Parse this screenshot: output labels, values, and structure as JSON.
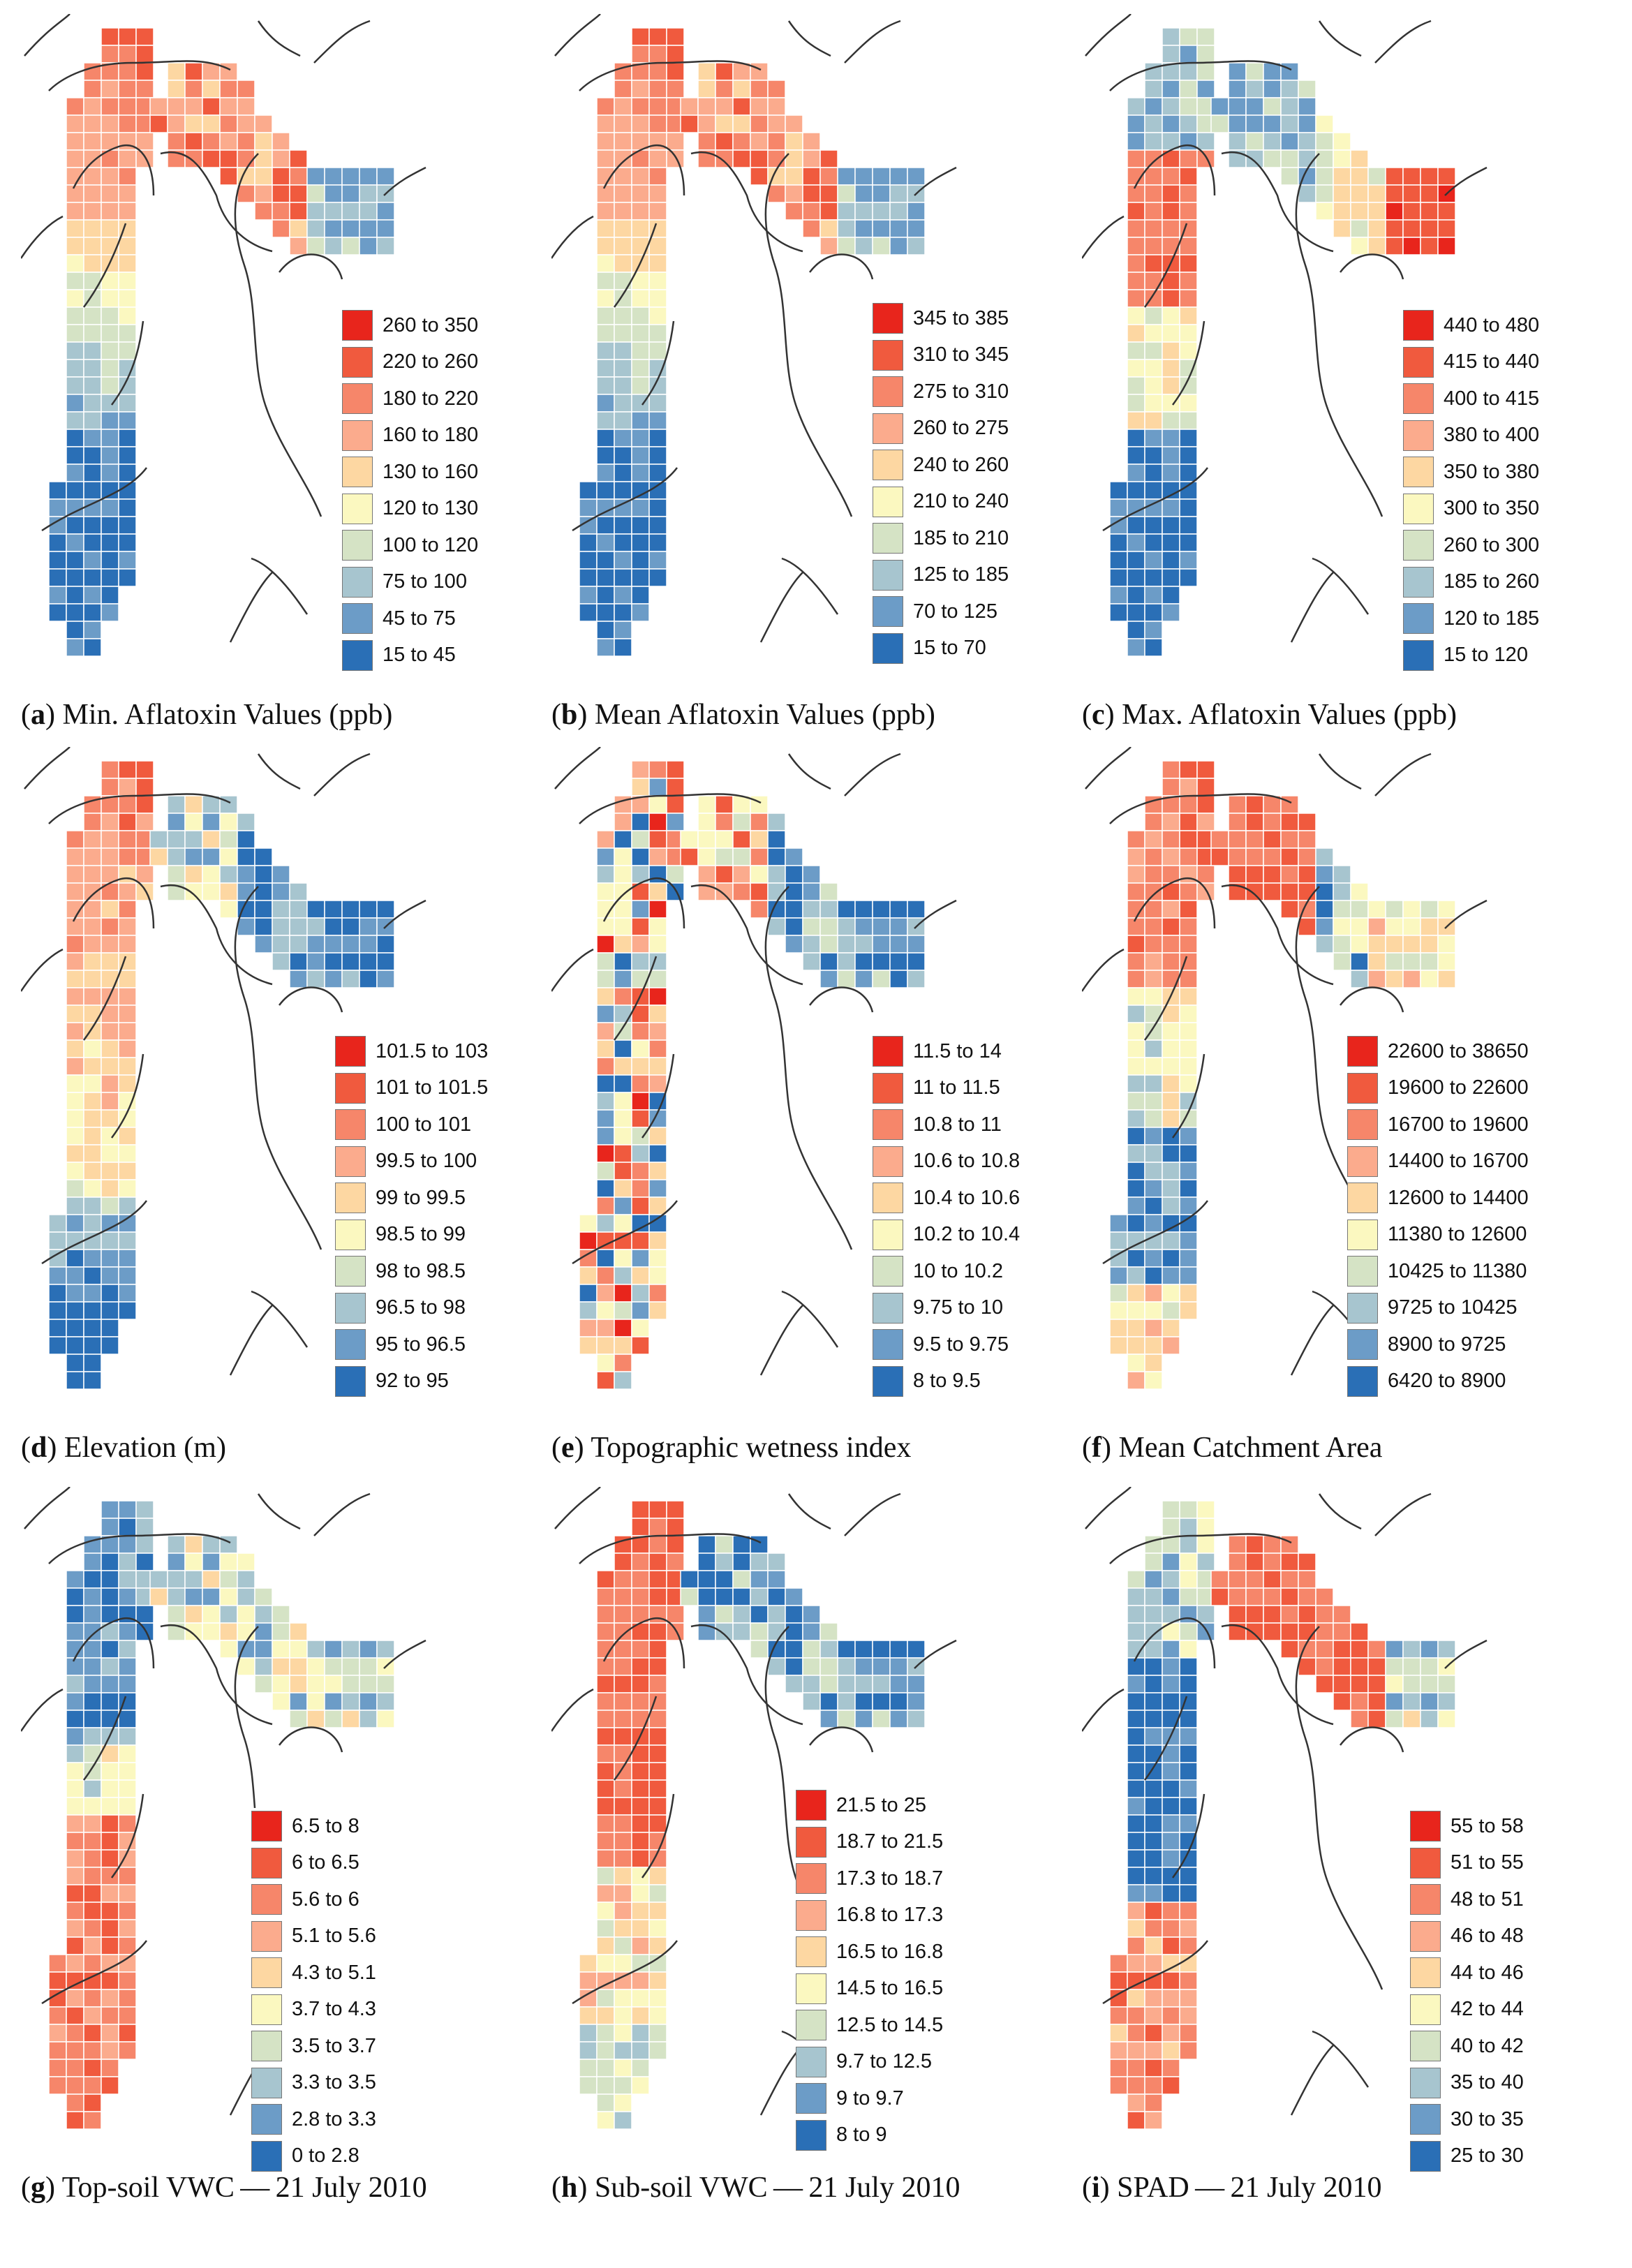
{
  "colors": {
    "ramp": [
      "#e8251c",
      "#f05a3e",
      "#f6866a",
      "#fbab8d",
      "#fdd7a2",
      "#fbf8c0",
      "#d5e3c5",
      "#a7c5cf",
      "#6c9cc7",
      "#2a6fb6"
    ],
    "cell_border": "#ffffff",
    "outline": "#3a3a3a",
    "contour": "#333333"
  },
  "panels": [
    {
      "id": "a",
      "caption_letter": "a",
      "caption_text": "Min. Aflatoxin Values (ppb)",
      "pattern": "aflatoxin",
      "legend": [
        "260 to 350",
        "220 to 260",
        "180 to 220",
        "160 to 180",
        "130 to 160",
        "120 to 130",
        "100 to 120",
        "75 to 100",
        "45 to 75",
        "15 to 45"
      ]
    },
    {
      "id": "b",
      "caption_letter": "b",
      "caption_text": "Mean Aflatoxin Values (ppb)",
      "pattern": "aflatoxin",
      "legend": [
        "345 to 385",
        "310 to 345",
        "275 to 310",
        "260 to 275",
        "240 to 260",
        "210 to 240",
        "185 to 210",
        "125 to 185",
        "70 to 125",
        "15 to 70"
      ]
    },
    {
      "id": "c",
      "caption_letter": "c",
      "caption_text": "Max. Aflatoxin Values (ppb)",
      "pattern": "maxaflatoxin",
      "legend": [
        "440 to 480",
        "415 to 440",
        "400 to 415",
        "380 to 400",
        "350 to 380",
        "300 to 350",
        "260 to 300",
        "185 to 260",
        "120 to 185",
        "15 to 120"
      ]
    },
    {
      "id": "d",
      "caption_letter": "d",
      "caption_text": "Elevation (m)",
      "pattern": "elevation",
      "legend": [
        "101.5 to 103",
        "101 to 101.5",
        "100 to 101",
        "99.5 to 100",
        "99 to 99.5",
        "98.5 to 99",
        "98 to 98.5",
        "96.5 to 98",
        "95 to 96.5",
        "92 to 95"
      ]
    },
    {
      "id": "e",
      "caption_letter": "e",
      "caption_text": "Topographic wetness index",
      "pattern": "twi",
      "legend": [
        "11.5 to 14",
        "11 to 11.5",
        "10.8 to 11",
        "10.6 to 10.8",
        "10.4 to 10.6",
        "10.2 to 10.4",
        "10 to 10.2",
        "9.75 to 10",
        "9.5 to 9.75",
        "8 to 9.5"
      ]
    },
    {
      "id": "f",
      "caption_letter": "f",
      "caption_text": "Mean Catchment Area",
      "pattern": "catchment",
      "legend": [
        "22600 to 38650",
        "19600 to 22600",
        "16700 to 19600",
        "14400 to 16700",
        "12600 to 14400",
        "11380 to 12600",
        "10425 to 11380",
        "9725 to 10425",
        "8900 to 9725",
        "6420 to 8900"
      ]
    },
    {
      "id": "g",
      "caption_letter": "g",
      "caption_text": "Top-soil VWC — 21 July 2010",
      "pattern": "topsoil",
      "legend": [
        "6.5 to 8",
        "6 to 6.5",
        "5.6 to 6",
        "5.1 to 5.6",
        "4.3 to 5.1",
        "3.7 to 4.3",
        "3.5 to 3.7",
        "3.3 to 3.5",
        "2.8 to 3.3",
        "0 to 2.8"
      ]
    },
    {
      "id": "h",
      "caption_letter": "h",
      "caption_text": "Sub-soil VWC — 21 July 2010",
      "pattern": "subsoil",
      "legend": [
        "21.5 to 25",
        "18.7 to 21.5",
        "17.3 to 18.7",
        "16.8 to 17.3",
        "16.5 to 16.8",
        "14.5 to 16.5",
        "12.5 to 14.5",
        "9.7 to 12.5",
        "9 to 9.7",
        "8 to 9"
      ]
    },
    {
      "id": "i",
      "caption_letter": "i",
      "caption_text": "SPAD — 21 July 2010",
      "pattern": "spad",
      "legend": [
        "55 to 58",
        "51 to 55",
        "48 to 51",
        "46 to 48",
        "44 to 46",
        "42 to 44",
        "40 to 42",
        "35 to 40",
        "30 to 35",
        "25 to 30"
      ]
    }
  ]
}
